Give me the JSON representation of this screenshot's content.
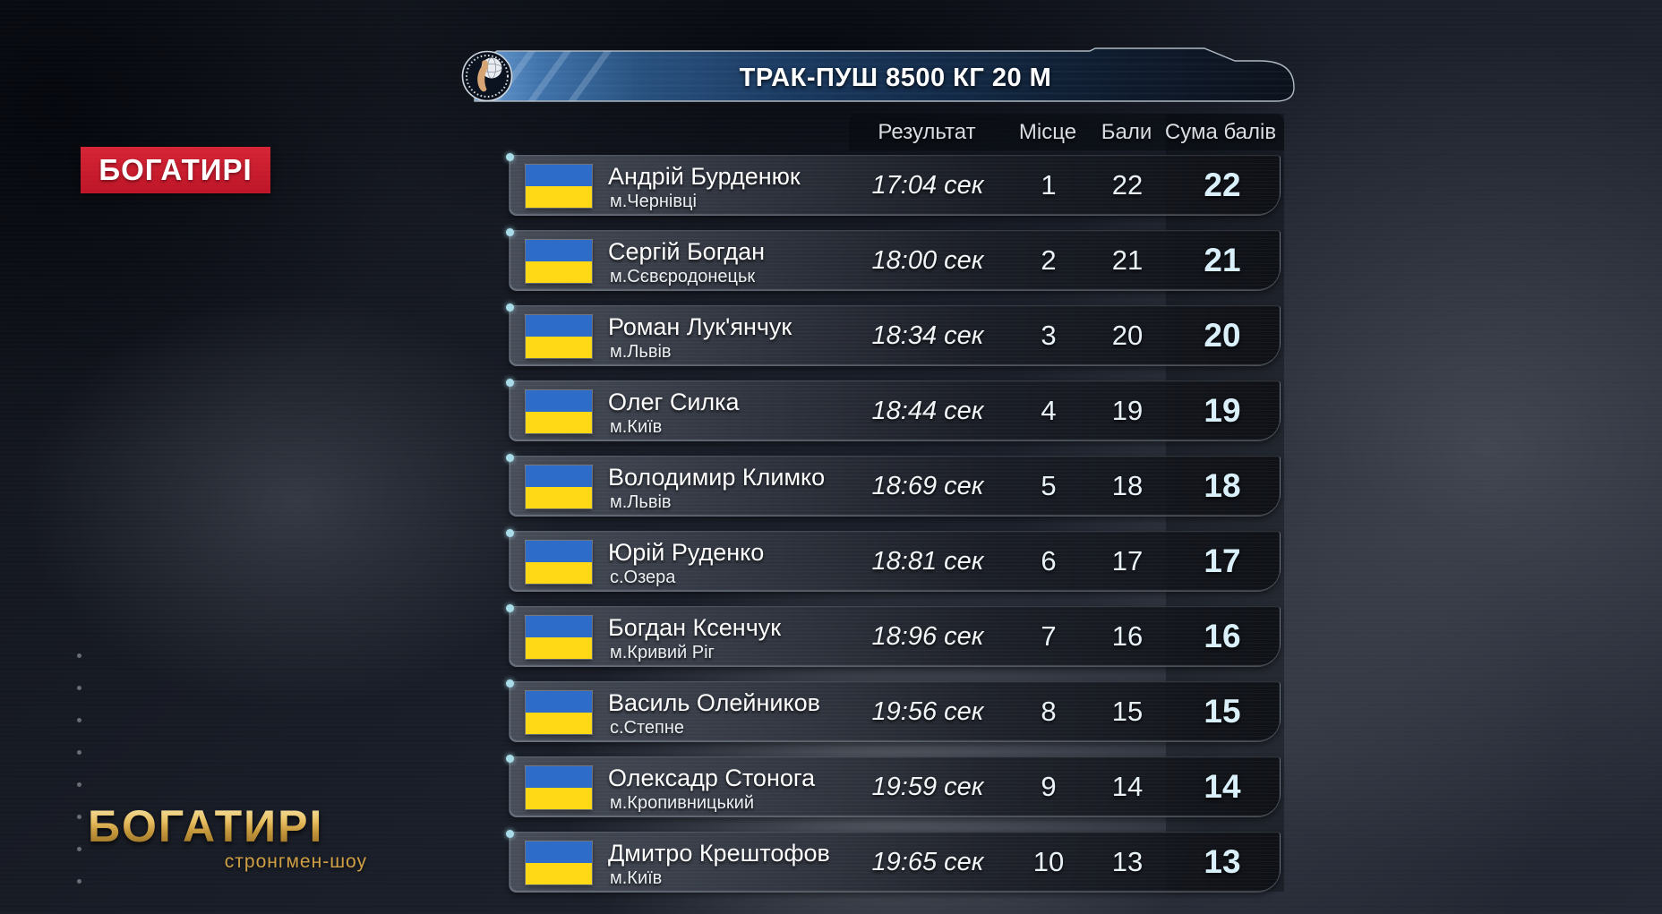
{
  "event_header": {
    "title": "ТРАК-ПУШ 8500 КГ 20 М",
    "logo": "strongman-federation-emblem"
  },
  "channel_badge": {
    "label": "БОГАТИРІ"
  },
  "show_logo": {
    "title": "БОГАТИРІ",
    "subtitle": "стронгмен-шоу"
  },
  "table": {
    "columns": [
      "Результат",
      "Місце",
      "Бали",
      "Сума балів"
    ],
    "rows": [
      {
        "name": "Андрій Бурденюк",
        "city": "м.Чернівці",
        "result": "17:04 сек",
        "place": "1",
        "points": "22",
        "total": "22"
      },
      {
        "name": "Сергій Богдан",
        "city": "м.Сєвєродонецьк",
        "result": "18:00 сек",
        "place": "2",
        "points": "21",
        "total": "21"
      },
      {
        "name": "Роман Лук'янчук",
        "city": "м.Львів",
        "result": "18:34 сек",
        "place": "3",
        "points": "20",
        "total": "20"
      },
      {
        "name": "Олег Силка",
        "city": "м.Київ",
        "result": "18:44 сек",
        "place": "4",
        "points": "19",
        "total": "19"
      },
      {
        "name": "Володимир Климко",
        "city": "м.Львів",
        "result": "18:69 сек",
        "place": "5",
        "points": "18",
        "total": "18"
      },
      {
        "name": "Юрій Руденко",
        "city": "с.Озера",
        "result": "18:81 сек",
        "place": "6",
        "points": "17",
        "total": "17"
      },
      {
        "name": "Богдан Ксенчук",
        "city": "м.Кривий Ріг",
        "result": "18:96 сек",
        "place": "7",
        "points": "16",
        "total": "16"
      },
      {
        "name": "Василь Олейников",
        "city": "с.Степне",
        "result": "19:56 сек",
        "place": "8",
        "points": "15",
        "total": "15"
      },
      {
        "name": "Олексадр Стонога",
        "city": "м.Кропивницький",
        "result": "19:59 сек",
        "place": "9",
        "points": "14",
        "total": "14"
      },
      {
        "name": "Дмитро Крештофов",
        "city": "м.Київ",
        "result": "19:65 сек",
        "place": "10",
        "points": "13",
        "total": "13"
      }
    ]
  },
  "colors": {
    "badge_red": "#cb1c2d",
    "flag_blue": "#2d6cc8",
    "flag_yellow": "#ffd816",
    "accent_cyan_dot": "#a7dce8",
    "gold": "#d4a94a",
    "titlebar_blue": "#3b6ca3",
    "total_text": "#d9f0fa"
  }
}
